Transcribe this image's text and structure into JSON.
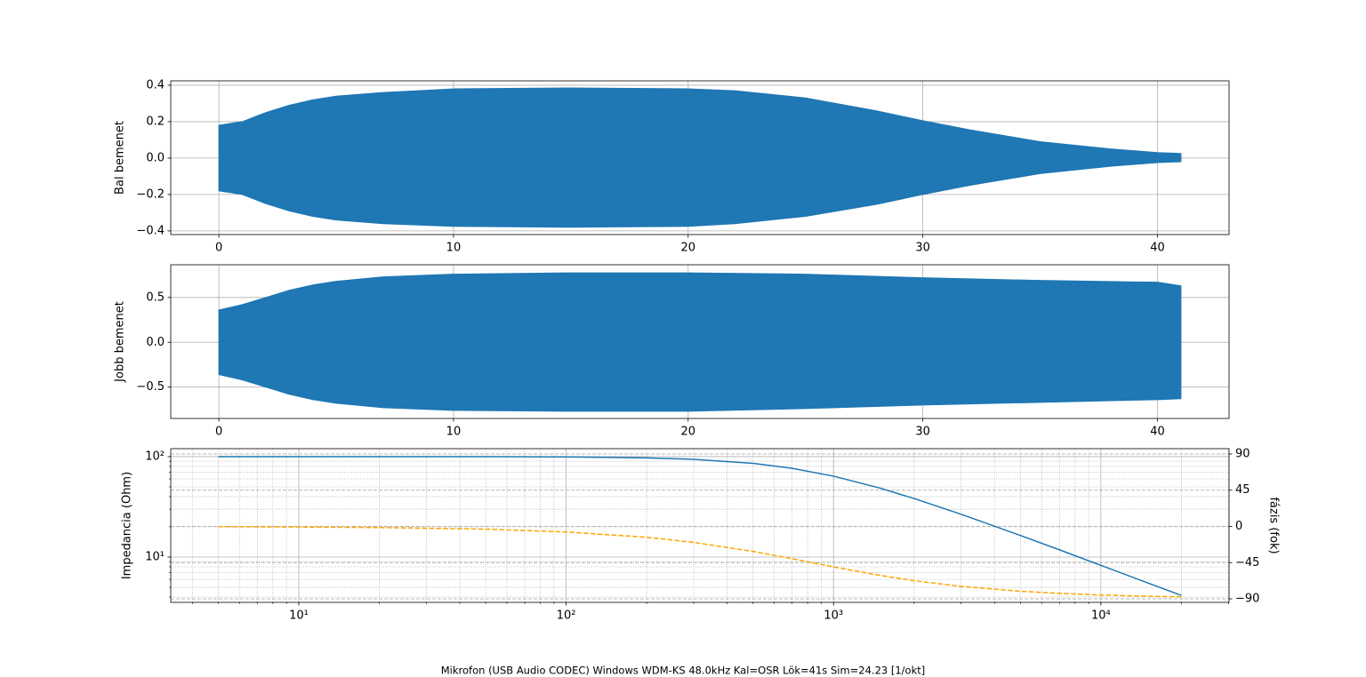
{
  "caption": "Mikrofon (USB Audio CODEC) Windows WDM-KS 48.0kHz Kal=OSR Lök=41s Sim=24.23 [1/okt]",
  "chart_data": [
    {
      "type": "area",
      "ylabel": "Bal bemenet",
      "x": [
        0,
        1,
        2,
        3,
        4,
        5,
        7,
        10,
        15,
        20,
        22,
        25,
        28,
        30,
        32,
        35,
        38,
        40,
        41
      ],
      "series": [
        {
          "color": "#1f77b4",
          "values": [
            0.18,
            0.2,
            0.25,
            0.29,
            0.32,
            0.34,
            0.36,
            0.38,
            0.385,
            0.38,
            0.37,
            0.33,
            0.26,
            0.205,
            0.155,
            0.09,
            0.05,
            0.03,
            0.025
          ]
        },
        {
          "color": "#1f77b4",
          "values": [
            -0.18,
            -0.2,
            -0.25,
            -0.29,
            -0.32,
            -0.34,
            -0.36,
            -0.375,
            -0.38,
            -0.375,
            -0.36,
            -0.32,
            -0.255,
            -0.2,
            -0.15,
            -0.085,
            -0.045,
            -0.025,
            -0.02
          ]
        }
      ],
      "xlim": [
        -2.05,
        43.05
      ],
      "ylim": [
        -0.42,
        0.424
      ],
      "xticks": [
        0,
        10,
        20,
        30,
        40
      ],
      "yticks": [
        {
          "value": -0.4,
          "label": "−0.4"
        },
        {
          "value": -0.2,
          "label": "−0.2"
        },
        {
          "value": 0,
          "label": "0.0"
        },
        0.2,
        0.4
      ],
      "grid": true
    },
    {
      "type": "area",
      "ylabel": "Jobb bemenet",
      "x": [
        0,
        1,
        2,
        3,
        4,
        5,
        7,
        10,
        15,
        20,
        25,
        30,
        35,
        40,
        41
      ],
      "series": [
        {
          "color": "#1f77b4",
          "values": [
            0.36,
            0.42,
            0.5,
            0.58,
            0.64,
            0.68,
            0.73,
            0.76,
            0.775,
            0.775,
            0.76,
            0.72,
            0.69,
            0.67,
            0.63
          ]
        },
        {
          "color": "#1f77b4",
          "values": [
            -0.36,
            -0.42,
            -0.5,
            -0.58,
            -0.64,
            -0.68,
            -0.73,
            -0.76,
            -0.77,
            -0.77,
            -0.74,
            -0.7,
            -0.67,
            -0.64,
            -0.63
          ]
        }
      ],
      "xlim": [
        -2.05,
        43.05
      ],
      "ylim": [
        -0.85,
        0.865
      ],
      "xticks": [
        0,
        10,
        20,
        30,
        40
      ],
      "yticks": [
        {
          "value": -0.5,
          "label": "−0.5"
        },
        {
          "value": 0,
          "label": "0.0"
        },
        0.5
      ],
      "grid": true
    },
    {
      "type": "line",
      "ylabel": "Impedancia (Ohm)",
      "y2label": "fázis (fok)",
      "xscale": "log",
      "yscale": "log",
      "x": [
        5,
        10,
        20,
        50,
        100,
        200,
        300,
        500,
        700,
        1000,
        1500,
        2000,
        3000,
        5000,
        7000,
        10000,
        15000,
        20000
      ],
      "series": [
        {
          "color": "#1f77b4",
          "values": [
            100,
            99.99,
            99.97,
            99.8,
            99.3,
            97.2,
            94.0,
            85.7,
            76.5,
            63.9,
            48.4,
            38.3,
            26.7,
            16.4,
            11.8,
            8.27,
            5.52,
            4.15
          ]
        },
        {
          "color": "#ffa500",
          "dashed": true,
          "axis": "y2",
          "values": [
            -0.3,
            -0.7,
            -1.4,
            -3.4,
            -6.9,
            -13.5,
            -19.9,
            -31.1,
            -40.1,
            -50.3,
            -61.0,
            -67.5,
            -74.5,
            -80.6,
            -83.2,
            -85.3,
            -86.8,
            -87.6
          ]
        }
      ],
      "xlim": [
        3.32,
        30150
      ],
      "ylim": [
        3.54,
        120
      ],
      "y2lim": [
        -94.4,
        96.6
      ],
      "xticks": [
        {
          "value": 10,
          "label": "10¹"
        },
        {
          "value": 100,
          "label": "10²"
        },
        {
          "value": 1000,
          "label": "10³"
        },
        {
          "value": 10000,
          "label": "10⁴"
        }
      ],
      "xminorticks": [
        4,
        5,
        6,
        7,
        8,
        9,
        20,
        30,
        40,
        50,
        60,
        70,
        80,
        90,
        200,
        300,
        400,
        500,
        600,
        700,
        800,
        900,
        2000,
        3000,
        4000,
        5000,
        6000,
        7000,
        8000,
        9000,
        20000,
        30000
      ],
      "yticks": [
        {
          "value": 10,
          "label": "10¹"
        },
        {
          "value": 100,
          "label": "10²"
        }
      ],
      "yminorticks": [
        4,
        5,
        6,
        7,
        8,
        9,
        20,
        30,
        40,
        50,
        60,
        70,
        80,
        90
      ],
      "y2ticks": [
        {
          "value": -90,
          "label": "−90"
        },
        {
          "value": -45,
          "label": "−45"
        },
        0,
        45,
        90
      ],
      "grid": true,
      "minor_grid": true,
      "y2grid": true
    }
  ]
}
